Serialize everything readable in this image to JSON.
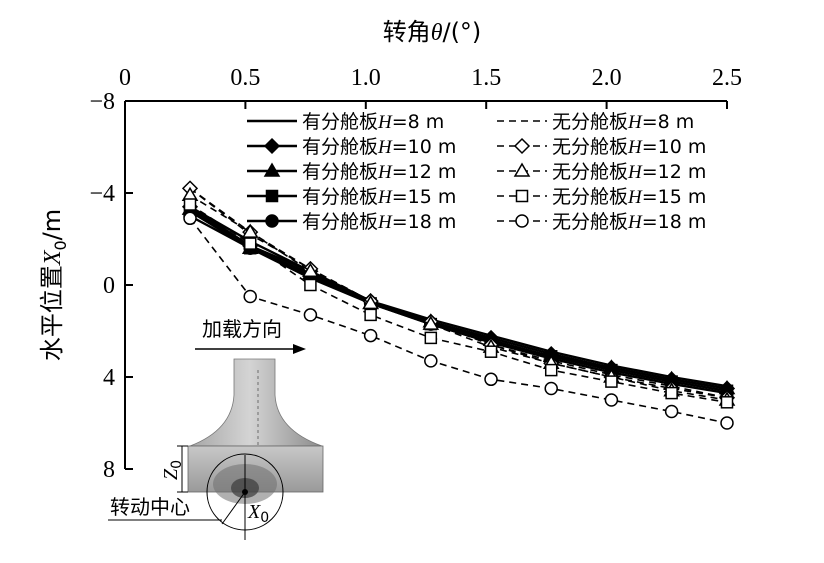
{
  "chart_data": {
    "type": "line",
    "title": "",
    "x_axis": {
      "label_prefix": "转角",
      "label_symbol": "θ",
      "label_suffix": "/(°)",
      "position": "top",
      "range": [
        0,
        2.5
      ],
      "ticks": [
        "0",
        "0.5",
        "1.0",
        "1.5",
        "2.0",
        "2.5"
      ]
    },
    "y_axis": {
      "label_prefix": "水平位置",
      "label_symbol": "X",
      "label_subscript": "0",
      "label_suffix": "/m",
      "range": [
        -8,
        8
      ],
      "inverted": true,
      "ticks": [
        "−8",
        "−4",
        "0",
        "4",
        "8"
      ]
    },
    "x": [
      0.27,
      0.52,
      0.77,
      1.02,
      1.27,
      1.52,
      1.77,
      2.02,
      2.27,
      2.5
    ],
    "series": [
      {
        "name": "有分舱板H=8 m",
        "label_prefix": "有分舱板",
        "label_var": "H",
        "label_suffix": "=8 m",
        "line": "solid",
        "marker": "none",
        "values": [
          -3.4,
          -1.9,
          -0.6,
          0.7,
          1.5,
          2.2,
          2.9,
          3.5,
          4.0,
          4.4
        ]
      },
      {
        "name": "有分舱板H=10 m",
        "label_prefix": "有分舱板",
        "label_var": "H",
        "label_suffix": "=10 m",
        "line": "solid",
        "marker": "diamond-filled",
        "values": [
          -3.4,
          -1.7,
          -0.6,
          0.7,
          1.6,
          2.3,
          3.0,
          3.6,
          4.1,
          4.5
        ]
      },
      {
        "name": "有分舱板H=12 m",
        "label_prefix": "有分舱板",
        "label_var": "H",
        "label_suffix": "=12 m",
        "line": "solid",
        "marker": "triangle-filled",
        "values": [
          -3.3,
          -1.6,
          -0.5,
          0.8,
          1.6,
          2.4,
          3.1,
          3.6,
          4.1,
          4.5
        ]
      },
      {
        "name": "有分舱板H=15 m",
        "label_prefix": "有分舱板",
        "label_var": "H",
        "label_suffix": "=15 m",
        "line": "solid",
        "marker": "square-filled",
        "values": [
          -3.2,
          -1.6,
          -0.4,
          0.8,
          1.7,
          2.5,
          3.1,
          3.7,
          4.2,
          4.6
        ]
      },
      {
        "name": "有分舱板H=18 m",
        "label_prefix": "有分舱板",
        "label_var": "H",
        "label_suffix": "=18 m",
        "line": "solid",
        "marker": "circle-filled",
        "values": [
          -3.0,
          -1.6,
          -0.3,
          0.8,
          1.7,
          2.5,
          3.2,
          3.8,
          4.3,
          4.7
        ]
      },
      {
        "name": "无分舱板H=8 m",
        "label_prefix": "无分舱板",
        "label_var": "H",
        "label_suffix": "=8 m",
        "line": "dashed",
        "marker": "none",
        "values": [
          -4.2,
          -2.2,
          -0.7,
          0.7,
          1.6,
          2.6,
          3.3,
          3.9,
          4.4,
          4.9
        ]
      },
      {
        "name": "无分舱板H=10 m",
        "label_prefix": "无分舱板",
        "label_var": "H",
        "label_suffix": "=10 m",
        "line": "dashed",
        "marker": "diamond-open",
        "values": [
          -4.2,
          -2.3,
          -0.7,
          0.7,
          1.6,
          2.6,
          3.4,
          4.0,
          4.5,
          4.9
        ]
      },
      {
        "name": "无分舱板H=12 m",
        "label_prefix": "无分舱板",
        "label_var": "H",
        "label_suffix": "=12 m",
        "line": "dashed",
        "marker": "triangle-open",
        "values": [
          -3.9,
          -2.3,
          -0.6,
          0.8,
          1.7,
          2.7,
          3.4,
          4.0,
          4.6,
          5.0
        ]
      },
      {
        "name": "无分舱板H=15 m",
        "label_prefix": "无分舱板",
        "label_var": "H",
        "label_suffix": "=15 m",
        "line": "dashed",
        "marker": "square-open",
        "values": [
          -3.5,
          -1.8,
          0.0,
          1.3,
          2.3,
          2.9,
          3.7,
          4.2,
          4.7,
          5.1
        ]
      },
      {
        "name": "无分舱板H=18 m",
        "label_prefix": "无分舱板",
        "label_var": "H",
        "label_suffix": "=18 m",
        "line": "dashed",
        "marker": "circle-open",
        "values": [
          -2.9,
          0.5,
          1.3,
          2.2,
          3.3,
          4.1,
          4.5,
          5.0,
          5.5,
          6.0
        ]
      }
    ],
    "legend_position": "top-right",
    "grid": false
  },
  "inset": {
    "load_direction_label": "加载方向",
    "rotation_center_label": "转动中心",
    "z0_symbol": "Z",
    "z0_subscript": "0",
    "x0_symbol": "X",
    "x0_subscript": "0"
  }
}
